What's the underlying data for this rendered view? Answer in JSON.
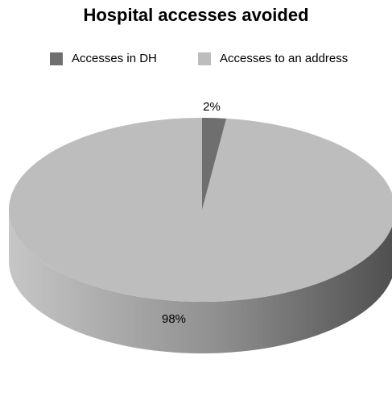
{
  "chart_data": {
    "type": "pie",
    "title": "Hospital accesses avoided",
    "categories": [
      "Accesses in DH",
      "Accesses to an address"
    ],
    "values": [
      2,
      98
    ],
    "value_labels": [
      "2%",
      "98%"
    ],
    "colors": [
      "#6f6f6f",
      "#bdbdbd"
    ],
    "legend_placement": "top",
    "style": "3d"
  }
}
